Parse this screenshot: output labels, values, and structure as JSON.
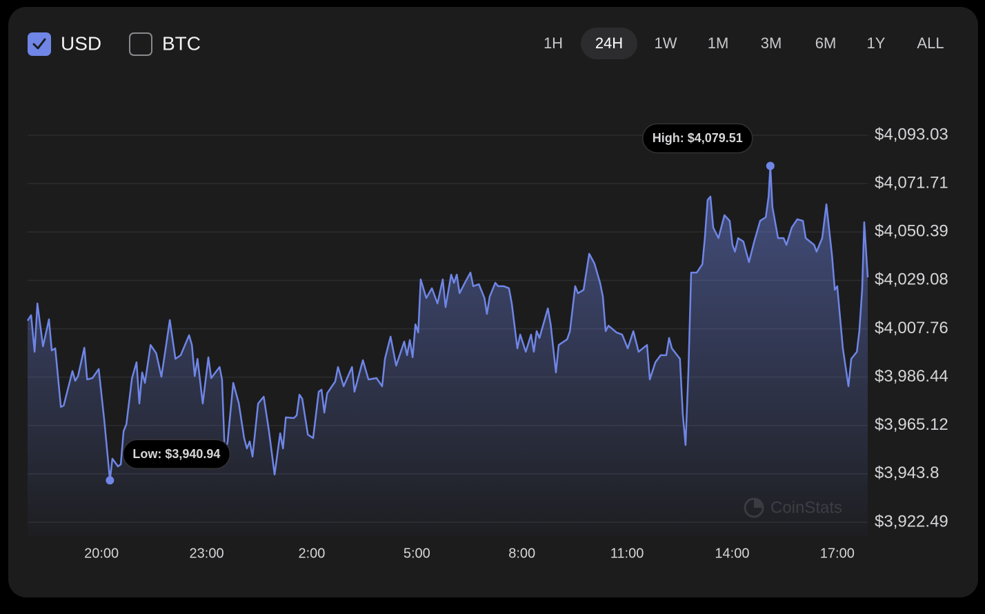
{
  "controls": {
    "currency_options": [
      {
        "label": "USD",
        "checked": true
      },
      {
        "label": "BTC",
        "checked": false
      }
    ],
    "ranges": [
      {
        "label": "1H",
        "active": false
      },
      {
        "label": "24H",
        "active": true
      },
      {
        "label": "1W",
        "active": false
      },
      {
        "label": "1M",
        "active": false
      },
      {
        "label": "3M",
        "active": false
      },
      {
        "label": "6M",
        "active": false
      },
      {
        "label": "1Y",
        "active": false
      },
      {
        "label": "ALL",
        "active": false
      }
    ]
  },
  "chart_data": {
    "type": "area",
    "color": "#6f86e6",
    "grid": true,
    "watermark": "CoinStats",
    "high_label": "High: $4,079.51",
    "low_label": "Low: $3,940.94",
    "xlim": [
      17.89,
      41.87
    ],
    "xticks": [
      {
        "value": 20,
        "label": "20:00"
      },
      {
        "value": 23,
        "label": "23:00"
      },
      {
        "value": 26,
        "label": "2:00"
      },
      {
        "value": 29,
        "label": "5:00"
      },
      {
        "value": 32,
        "label": "8:00"
      },
      {
        "value": 35,
        "label": "11:00"
      },
      {
        "value": 38,
        "label": "14:00"
      },
      {
        "value": 41,
        "label": "17:00"
      }
    ],
    "ylim": [
      3922.49,
      4093.03
    ],
    "yticks": [
      {
        "value": 4093.03,
        "label": "$4,093.03"
      },
      {
        "value": 4071.71,
        "label": "$4,071.71"
      },
      {
        "value": 4050.39,
        "label": "$4,050.39"
      },
      {
        "value": 4029.08,
        "label": "$4,029.08"
      },
      {
        "value": 4007.76,
        "label": "$4,007.76"
      },
      {
        "value": 3986.44,
        "label": "$3,986.44"
      },
      {
        "value": 3965.12,
        "label": "$3,965.12"
      },
      {
        "value": 3943.8,
        "label": "$3,943.8"
      },
      {
        "value": 3922.49,
        "label": "$3,922.49"
      }
    ],
    "x": [
      17.89,
      17.99,
      18.09,
      18.17,
      18.33,
      18.5,
      18.58,
      18.68,
      18.84,
      18.92,
      19.17,
      19.25,
      19.33,
      19.51,
      19.59,
      19.74,
      19.92,
      20.08,
      20.24,
      20.31,
      20.47,
      20.55,
      20.63,
      20.71,
      20.87,
      21.0,
      21.08,
      21.16,
      21.24,
      21.4,
      21.56,
      21.71,
      21.95,
      22.11,
      22.26,
      22.5,
      22.58,
      22.66,
      22.74,
      22.89,
      23.05,
      23.13,
      23.37,
      23.44,
      23.52,
      23.6,
      23.76,
      23.92,
      24.07,
      24.15,
      24.23,
      24.31,
      24.47,
      24.63,
      24.78,
      24.94,
      25.1,
      25.18,
      25.26,
      25.49,
      25.57,
      25.65,
      25.73,
      25.89,
      26.04,
      26.2,
      26.28,
      26.36,
      26.44,
      26.67,
      26.75,
      26.91,
      27.15,
      27.22,
      27.46,
      27.62,
      27.85,
      28.01,
      28.09,
      28.25,
      28.41,
      28.64,
      28.72,
      28.8,
      28.88,
      28.96,
      29.04,
      29.11,
      29.27,
      29.43,
      29.59,
      29.74,
      29.82,
      29.98,
      30.06,
      30.14,
      30.22,
      30.37,
      30.53,
      30.61,
      30.77,
      30.93,
      31.0,
      31.08,
      31.24,
      31.32,
      31.48,
      31.63,
      31.71,
      31.87,
      31.95,
      32.11,
      32.26,
      32.34,
      32.42,
      32.5,
      32.74,
      32.82,
      32.97,
      33.05,
      33.29,
      33.37,
      33.52,
      33.6,
      33.76,
      33.92,
      34.07,
      34.23,
      34.31,
      34.39,
      34.47,
      34.7,
      34.86,
      35.02,
      35.18,
      35.33,
      35.57,
      35.65,
      35.81,
      35.96,
      36.12,
      36.2,
      36.28,
      36.51,
      36.59,
      36.67,
      36.75,
      36.83,
      36.99,
      37.15,
      37.22,
      37.3,
      37.38,
      37.46,
      37.61,
      37.78,
      37.93,
      38.01,
      38.08,
      38.17,
      38.32,
      38.48,
      38.63,
      38.8,
      38.96,
      39.04,
      39.09,
      39.15,
      39.31,
      39.47,
      39.55,
      39.7,
      39.86,
      40.02,
      40.1,
      40.34,
      40.41,
      40.57,
      40.69,
      40.85,
      40.93,
      41.0,
      41.16,
      41.32,
      41.4,
      41.56,
      41.63,
      41.71,
      41.77,
      41.87
    ],
    "values": [
      4011.3,
      4013.7,
      3997.6,
      4018.9,
      4000.0,
      4011.9,
      3998.2,
      3999.1,
      3973.3,
      3973.9,
      3989.1,
      3984.8,
      3986.9,
      3999.4,
      3985.4,
      3986.0,
      3990.0,
      3967.2,
      3940.94,
      3950.5,
      3947.1,
      3948.0,
      3962.6,
      3965.7,
      3986.0,
      3993.0,
      3974.8,
      3988.5,
      3983.9,
      4000.6,
      3997.0,
      3986.6,
      4011.6,
      3994.5,
      3996.1,
      4004.9,
      4000.6,
      3986.9,
      3994.5,
      3974.8,
      3995.2,
      3986.0,
      3990.9,
      3985.4,
      3952.0,
      3958.1,
      3983.9,
      3974.8,
      3959.6,
      3955.0,
      3958.1,
      3951.4,
      3974.8,
      3977.8,
      3962.6,
      3943.5,
      3961.7,
      3955.0,
      3968.7,
      3968.4,
      3969.6,
      3978.7,
      3976.9,
      3961.1,
      3959.6,
      3980.0,
      3980.9,
      3970.8,
      3979.3,
      3984.5,
      3990.9,
      3982.4,
      3990.9,
      3980.0,
      3993.9,
      3985.4,
      3986.0,
      3982.4,
      3994.5,
      4004.3,
      3991.5,
      4002.1,
      3996.1,
      4002.8,
      3995.2,
      4009.7,
      4006.1,
      4029.5,
      4021.3,
      4025.6,
      4018.9,
      4029.5,
      4017.3,
      4031.6,
      4028.0,
      4031.6,
      4023.4,
      4028.0,
      4032.5,
      4026.5,
      4027.4,
      4021.3,
      4014.3,
      4021.9,
      4028.0,
      4026.5,
      4026.5,
      4025.6,
      4018.9,
      3999.1,
      4005.2,
      3997.6,
      4005.2,
      3997.6,
      4006.7,
      4003.7,
      4016.7,
      4009.7,
      3988.5,
      4000.6,
      4003.1,
      4006.7,
      4026.5,
      4023.4,
      4024.9,
      4040.8,
      4036.5,
      4028.0,
      4021.9,
      4006.7,
      4009.1,
      4006.1,
      4005.2,
      3999.1,
      4006.7,
      3997.6,
      4000.6,
      3985.4,
      3993.0,
      3996.1,
      3996.1,
      4003.7,
      3999.1,
      3994.5,
      3970.2,
      3956.5,
      3988.5,
      4032.5,
      4032.5,
      4036.2,
      4047.7,
      4064.5,
      4066.0,
      4052.3,
      4047.7,
      4057.8,
      4055.3,
      4044.7,
      4041.7,
      4047.7,
      4046.2,
      4037.1,
      4046.2,
      4055.3,
      4056.9,
      4066.0,
      4079.51,
      4061.4,
      4047.7,
      4047.7,
      4044.7,
      4052.3,
      4056.0,
      4055.3,
      4047.7,
      4044.7,
      4041.7,
      4047.7,
      4062.6,
      4040.1,
      4024.9,
      4026.5,
      3999.1,
      3982.4,
      3994.5,
      3997.6,
      4006.7,
      4024.9,
      4054.7,
      4030.4
    ]
  }
}
